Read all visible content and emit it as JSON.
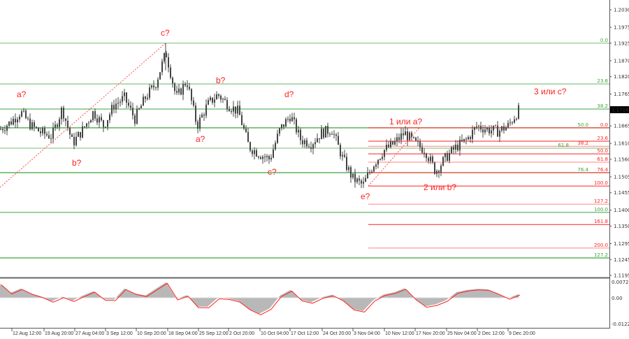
{
  "chart_data": {
    "type": "candlestick",
    "colors": {
      "candles": "#444444",
      "fib_green": "#3aa53a",
      "fib_red": "#ff2020",
      "oscillator_fill": "#b8b8b8",
      "oscillator_signal": "#ff2020",
      "current_price_bg": "#000000"
    },
    "x_tick_labels": [
      "12 Aug 12:00",
      "19 Aug 20:00",
      "27 Aug 04:00",
      "3 Sep 12:00",
      "10 Sep 20:00",
      "18 Sep 04:00",
      "25 Sep 12:00",
      "2 Oct 20:00",
      "10 Oct 04:00",
      "17 Oct 12:00",
      "24 Oct 20:00",
      "3 Nov 04:00",
      "10 Nov 12:00",
      "17 Nov 20:00",
      "25 Nov 04:00",
      "2 Dec 12:00",
      "9 Dec 20:00"
    ],
    "y_tick_labels": [
      "1.2030",
      "1.1975",
      "1.1925",
      "1.1870",
      "1.1820",
      "1.1765",
      "1.1665",
      "1.1610",
      "1.1560",
      "1.1505",
      "1.1455",
      "1.1400",
      "1.1350",
      "1.1295",
      "1.1245",
      "1.1195"
    ],
    "ylim": [
      1.1195,
      1.203
    ],
    "current_price": "1.1716",
    "approx_closes": [
      1.1654,
      1.1676,
      1.1709,
      1.1665,
      1.1643,
      1.1632,
      1.172,
      1.161,
      1.1654,
      1.1709,
      1.1665,
      1.1731,
      1.1753,
      1.1687,
      1.1753,
      1.1797,
      1.1896,
      1.1753,
      1.1808,
      1.1665,
      1.1731,
      1.1764,
      1.1731,
      1.1709,
      1.1599,
      1.1577,
      1.156,
      1.1654,
      1.1698,
      1.1621,
      1.161,
      1.1643,
      1.1654,
      1.1566,
      1.15,
      1.1478,
      1.1544,
      1.1588,
      1.161,
      1.1643,
      1.161,
      1.1588,
      1.1522,
      1.1566,
      1.1599,
      1.1621,
      1.1665,
      1.1654,
      1.1648,
      1.1665,
      1.1714
    ],
    "fib_green": [
      {
        "label": "0.0",
        "price": 1.1925
      },
      {
        "label": "23.6",
        "price": 1.1797
      },
      {
        "label": "38.2",
        "price": 1.1718
      },
      {
        "label": "50.0",
        "price": 1.1659
      },
      {
        "label": "61.8",
        "price": 1.1595
      },
      {
        "label": "76.4",
        "price": 1.1518
      },
      {
        "label": "100.0",
        "price": 1.1393
      },
      {
        "label": "127.2",
        "price": 1.125
      }
    ],
    "fib_red": [
      {
        "label": "0.0",
        "price": 1.1659
      },
      {
        "label": "23.6",
        "price": 1.1617
      },
      {
        "label": "38.2",
        "price": 1.1601
      },
      {
        "label": "50.0",
        "price": 1.1577
      },
      {
        "label": "61.8",
        "price": 1.1551
      },
      {
        "label": "76.4",
        "price": 1.1518
      },
      {
        "label": "100.0",
        "price": 1.1476
      },
      {
        "label": "127.2",
        "price": 1.1419
      },
      {
        "label": "161.8",
        "price": 1.1355
      },
      {
        "label": "200.0",
        "price": 1.1281
      }
    ],
    "trendlines": [
      {
        "from_price": 1.1472,
        "to_price": 1.1925
      },
      {
        "from_price": 1.1476,
        "to_price": 1.1659
      }
    ],
    "wave_labels": [
      "a?",
      "b?",
      "c?",
      "a?",
      "b?",
      "c?",
      "d?",
      "e?",
      "1 или a?",
      "2 или b?",
      "3 или c?"
    ],
    "oscillator": {
      "y_tick_labels": [
        "0.00725",
        "0.00",
        "-0.01226"
      ],
      "ylim": [
        -0.01226,
        0.00725
      ],
      "values": [
        0.0063,
        0.0022,
        0.0042,
        0.002,
        0.0005,
        -0.0015,
        0.0005,
        -0.0012,
        0.001,
        0.003,
        -0.0006,
        -0.0008,
        0.0042,
        0.002,
        0.001,
        0.004,
        0.007,
        -0.0005,
        0.0012,
        -0.004,
        -0.004,
        0.0,
        -0.0003,
        -0.0015,
        -0.005,
        -0.0072,
        -0.0048,
        0.001,
        0.0035,
        -0.001,
        -0.002,
        0.0002,
        0.0014,
        -0.001,
        -0.005,
        -0.006,
        -0.001,
        0.0015,
        0.0025,
        0.0043,
        -0.0005,
        -0.0038,
        -0.003,
        -0.0011,
        0.0025,
        0.0035,
        0.004,
        0.0038,
        0.002,
        -0.0002,
        0.0017
      ]
    }
  }
}
